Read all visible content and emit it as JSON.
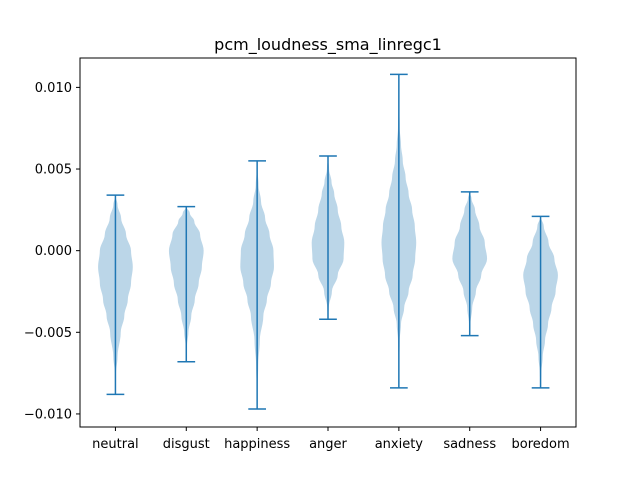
{
  "chart_data": {
    "type": "violin",
    "title": "pcm_loudness_sma_linregc1",
    "xlabel": "",
    "ylabel": "",
    "ylim": [
      -0.0108,
      0.0118
    ],
    "yticks": [
      {
        "value": 0.01,
        "label": "0.010"
      },
      {
        "value": 0.005,
        "label": "0.005"
      },
      {
        "value": 0.0,
        "label": "0.000"
      },
      {
        "value": -0.005,
        "label": "−0.005"
      },
      {
        "value": -0.01,
        "label": "−0.010"
      }
    ],
    "grid": false,
    "colors": {
      "body": "#1f77b4",
      "body_alpha": 0.3,
      "line": "#1f77b4"
    },
    "categories": [
      "neutral",
      "disgust",
      "happiness",
      "anger",
      "anxiety",
      "sadness",
      "boredom"
    ],
    "violins": [
      {
        "category": "neutral",
        "min": -0.0088,
        "max": 0.0034,
        "profile": [
          [
            -0.0088,
            0
          ],
          [
            -0.0075,
            0.03
          ],
          [
            -0.0065,
            0.12
          ],
          [
            -0.005,
            0.3
          ],
          [
            -0.004,
            0.5
          ],
          [
            -0.003,
            0.7
          ],
          [
            -0.002,
            0.88
          ],
          [
            -0.001,
            0.98
          ],
          [
            0.0,
            0.88
          ],
          [
            0.001,
            0.6
          ],
          [
            0.002,
            0.32
          ],
          [
            0.0028,
            0.12
          ],
          [
            0.0034,
            0
          ]
        ]
      },
      {
        "category": "disgust",
        "min": -0.0068,
        "max": 0.0027,
        "profile": [
          [
            -0.0068,
            0
          ],
          [
            -0.0058,
            0.04
          ],
          [
            -0.005,
            0.12
          ],
          [
            -0.004,
            0.28
          ],
          [
            -0.003,
            0.48
          ],
          [
            -0.002,
            0.7
          ],
          [
            -0.001,
            0.88
          ],
          [
            0.0,
            0.98
          ],
          [
            0.001,
            0.78
          ],
          [
            0.0018,
            0.45
          ],
          [
            0.0023,
            0.2
          ],
          [
            0.0027,
            0
          ]
        ]
      },
      {
        "category": "happiness",
        "min": -0.0097,
        "max": 0.0055,
        "profile": [
          [
            -0.0097,
            0
          ],
          [
            -0.0085,
            0.02
          ],
          [
            -0.007,
            0.06
          ],
          [
            -0.0055,
            0.15
          ],
          [
            -0.004,
            0.35
          ],
          [
            -0.003,
            0.55
          ],
          [
            -0.002,
            0.78
          ],
          [
            -0.001,
            0.95
          ],
          [
            0.0,
            0.92
          ],
          [
            0.001,
            0.7
          ],
          [
            0.002,
            0.45
          ],
          [
            0.003,
            0.22
          ],
          [
            0.004,
            0.08
          ],
          [
            0.005,
            0.02
          ],
          [
            0.0055,
            0
          ]
        ]
      },
      {
        "category": "anger",
        "min": -0.0042,
        "max": 0.0058,
        "profile": [
          [
            -0.0042,
            0
          ],
          [
            -0.0035,
            0.04
          ],
          [
            -0.0025,
            0.22
          ],
          [
            -0.0015,
            0.55
          ],
          [
            -0.0005,
            0.88
          ],
          [
            0.0005,
            0.92
          ],
          [
            0.0015,
            0.75
          ],
          [
            0.0025,
            0.55
          ],
          [
            0.0035,
            0.35
          ],
          [
            0.0042,
            0.2
          ],
          [
            0.005,
            0.06
          ],
          [
            0.0058,
            0
          ]
        ]
      },
      {
        "category": "anxiety",
        "min": -0.0084,
        "max": 0.0108,
        "profile": [
          [
            -0.0084,
            0
          ],
          [
            -0.007,
            0.02
          ],
          [
            -0.0055,
            0.05
          ],
          [
            -0.0045,
            0.12
          ],
          [
            -0.0035,
            0.3
          ],
          [
            -0.0025,
            0.55
          ],
          [
            -0.0015,
            0.78
          ],
          [
            -0.0005,
            0.92
          ],
          [
            0.0005,
            0.98
          ],
          [
            0.0015,
            0.9
          ],
          [
            0.0025,
            0.75
          ],
          [
            0.0035,
            0.55
          ],
          [
            0.0045,
            0.38
          ],
          [
            0.0055,
            0.22
          ],
          [
            0.0065,
            0.12
          ],
          [
            0.0075,
            0.05
          ],
          [
            0.009,
            0.02
          ],
          [
            0.0108,
            0
          ]
        ]
      },
      {
        "category": "sadness",
        "min": -0.0052,
        "max": 0.0036,
        "profile": [
          [
            -0.0052,
            0
          ],
          [
            -0.0045,
            0.04
          ],
          [
            -0.0035,
            0.14
          ],
          [
            -0.0025,
            0.35
          ],
          [
            -0.0015,
            0.65
          ],
          [
            -0.0005,
            0.98
          ],
          [
            0.0005,
            0.85
          ],
          [
            0.0015,
            0.55
          ],
          [
            0.0025,
            0.3
          ],
          [
            0.0032,
            0.1
          ],
          [
            0.0036,
            0
          ]
        ]
      },
      {
        "category": "boredom",
        "min": -0.0084,
        "max": 0.0021,
        "profile": [
          [
            -0.0084,
            0
          ],
          [
            -0.0075,
            0.04
          ],
          [
            -0.0065,
            0.12
          ],
          [
            -0.0055,
            0.25
          ],
          [
            -0.0045,
            0.42
          ],
          [
            -0.0035,
            0.62
          ],
          [
            -0.0025,
            0.85
          ],
          [
            -0.0015,
            0.98
          ],
          [
            -0.0005,
            0.78
          ],
          [
            0.0005,
            0.45
          ],
          [
            0.0015,
            0.18
          ],
          [
            0.0021,
            0
          ]
        ]
      }
    ]
  }
}
